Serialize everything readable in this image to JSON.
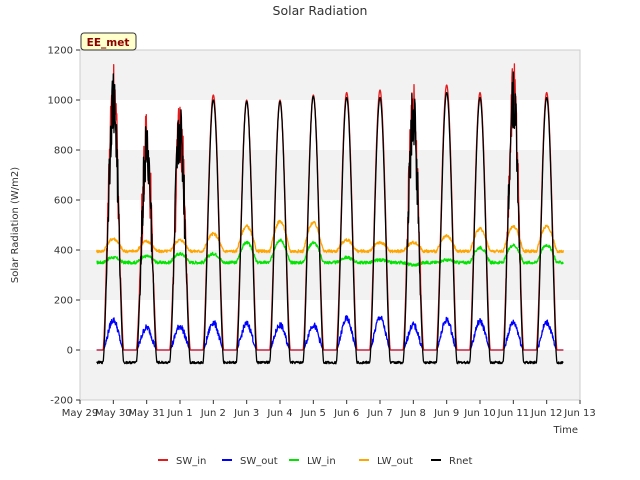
{
  "chart_data": {
    "type": "line",
    "title": "Solar Radiation",
    "xlabel": "Time",
    "ylabel": "Solar Radiation (W/m2)",
    "station_label": "EE_met",
    "ylim": [
      -200,
      1200
    ],
    "yticks": [
      -200,
      0,
      200,
      400,
      600,
      800,
      1000,
      1200
    ],
    "xlim": [
      0,
      15
    ],
    "xtick_labels": [
      "May 29",
      "May 30",
      "May 31",
      "Jun 1",
      "Jun 2",
      "Jun 3",
      "Jun 4",
      "Jun 5",
      "Jun 6",
      "Jun 7",
      "Jun 8",
      "Jun 9",
      "Jun 10",
      "Jun 11",
      "Jun 12",
      "Jun 13"
    ],
    "grid": "horizontal bands",
    "legend_position": "bottom-center",
    "day_centers": [
      1.0,
      2.0,
      3.0,
      4.0,
      5.0,
      6.0,
      7.0,
      8.0,
      9.0,
      10.0,
      11.0,
      12.0,
      13.0,
      14.0
    ],
    "series": [
      {
        "name": "SW_in",
        "color": "#e41a1c",
        "values": [
          1050,
          830,
          890,
          1020,
          1000,
          1000,
          1020,
          1030,
          1040,
          960,
          1060,
          1030,
          1040,
          1030
        ]
      },
      {
        "name": "SW_out",
        "color": "#0000ff",
        "values": [
          120,
          90,
          95,
          110,
          105,
          100,
          100,
          125,
          130,
          100,
          120,
          115,
          110,
          110
        ]
      },
      {
        "name": "LW_in",
        "color": "#00e400",
        "values": [
          370,
          375,
          385,
          385,
          430,
          440,
          430,
          370,
          360,
          340,
          360,
          410,
          420,
          420
        ]
      },
      {
        "name": "LW_out",
        "color": "#ffa500",
        "values": [
          445,
          435,
          440,
          465,
          495,
          515,
          510,
          440,
          430,
          430,
          455,
          485,
          495,
          495
        ]
      },
      {
        "name": "Rnet",
        "color": "#000000",
        "values": [
          1000,
          800,
          870,
          1000,
          995,
          995,
          1015,
          1010,
          1010,
          930,
          1030,
          1010,
          1020,
          1010
        ]
      }
    ],
    "night_values": {
      "SW_in": 0,
      "SW_out": 0,
      "LW_in": 350,
      "LW_out": 395,
      "Rnet": -50
    }
  }
}
